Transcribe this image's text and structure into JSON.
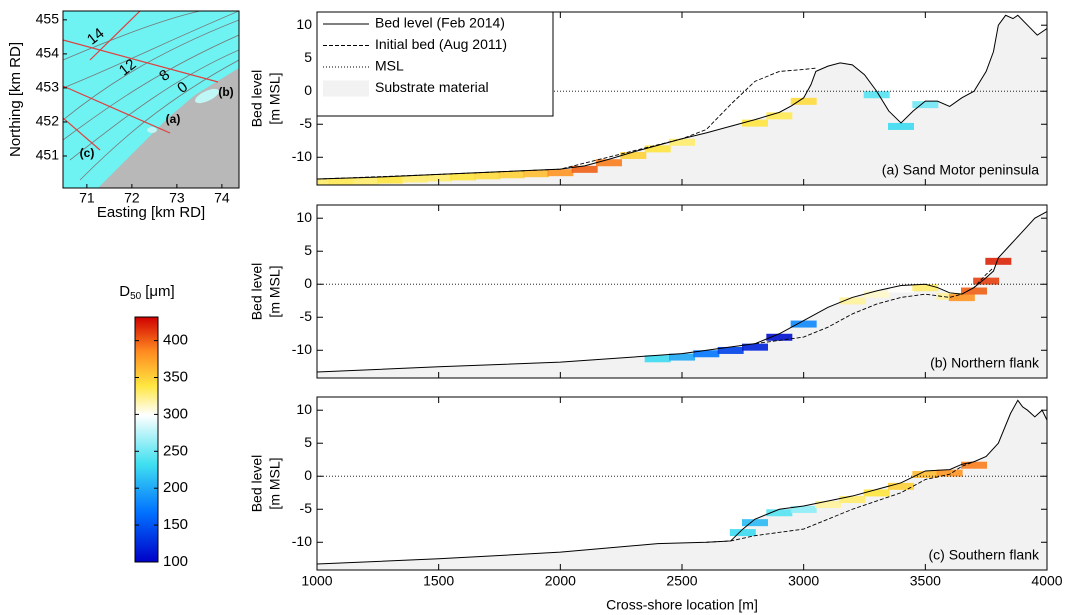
{
  "chart_data": [
    {
      "type": "map",
      "xlabel": "Easting [km RD]",
      "ylabel": "Northing [km RD]",
      "xlim": [
        70.47,
        74.38
      ],
      "ylim": [
        450.06,
        455.26
      ],
      "xticks": [
        71,
        72,
        73,
        74
      ],
      "yticks": [
        451,
        452,
        453,
        454,
        455
      ],
      "contour_labels": [
        "14",
        "12",
        "8",
        "0"
      ],
      "transect_labels": [
        "(a)",
        "(b)",
        "(c)"
      ],
      "water_color": "#6ff2f2",
      "land_color": "#b8b8b8",
      "transect_color": "#e04040"
    },
    {
      "type": "colorbar",
      "label": "D",
      "label_sub": "50",
      "label_unit": "[μm]",
      "clim": [
        100,
        432
      ],
      "ticks": [
        100,
        150,
        200,
        250,
        300,
        350,
        400
      ]
    },
    {
      "type": "profile",
      "ylabel": [
        "Bed level",
        "[m MSL]"
      ],
      "panel_label": "(a) Sand Motor peninsula",
      "xlim": [
        1000,
        4000
      ],
      "ylim": [
        -14.2,
        12
      ],
      "xticks": [
        1000,
        1500,
        2000,
        2500,
        3000,
        3500,
        4000
      ],
      "yticks": [
        -10,
        -5,
        0,
        5,
        10
      ],
      "xtick_labels": false,
      "legend": "upper left",
      "substrate": {
        "name": "Substrate material",
        "color": "#f2f2f2"
      },
      "series": [
        {
          "name": "Bed level (Feb 2014)",
          "style": "solid",
          "color": "#000000",
          "x": [
            1000,
            1250,
            1500,
            1750,
            2000,
            2100,
            2200,
            2300,
            2400,
            2500,
            2600,
            2700,
            2800,
            2900,
            2950,
            3000,
            3030,
            3050,
            3100,
            3150,
            3200,
            3250,
            3300,
            3350,
            3400,
            3450,
            3500,
            3550,
            3600,
            3650,
            3700,
            3750,
            3780,
            3800,
            3830,
            3860,
            3880,
            3920,
            3960,
            4000
          ],
          "values": [
            -13.3,
            -13,
            -12.6,
            -12.2,
            -11.8,
            -11.3,
            -10.3,
            -9.2,
            -8.2,
            -7.2,
            -6.3,
            -5.3,
            -4.3,
            -3.2,
            -2.2,
            -1,
            1,
            3,
            3.8,
            4.3,
            4,
            2.5,
            0,
            -3,
            -4.8,
            -3,
            -1.5,
            -1.5,
            -2.3,
            -1,
            0,
            3,
            6,
            10,
            11.5,
            11,
            11.5,
            10,
            8.5,
            9.5
          ]
        },
        {
          "name": "Initial bed (Aug 2011)",
          "style": "dashed",
          "color": "#000000",
          "x": [
            1000,
            1500,
            2000,
            2500,
            2600,
            2700,
            2800,
            2900,
            3000,
            3050
          ],
          "values": [
            -13.3,
            -12.6,
            -11.8,
            -7.2,
            -5.8,
            -2,
            1.5,
            3,
            3.3,
            3.5
          ]
        },
        {
          "name": "MSL",
          "style": "dotted",
          "color": "#000000",
          "x": [
            1000,
            4000
          ],
          "values": [
            0,
            0
          ]
        }
      ],
      "sediment": {
        "x": [
          1000,
          1100,
          1200,
          1300,
          1400,
          1500,
          1600,
          1700,
          1800,
          1900,
          2000,
          2100,
          2200,
          2300,
          2400,
          2500,
          2800,
          2900,
          3000,
          3300,
          3400,
          3500
        ],
        "d50": [
          330,
          335,
          330,
          340,
          330,
          330,
          340,
          345,
          350,
          360,
          380,
          400,
          390,
          350,
          340,
          330,
          340,
          335,
          345,
          240,
          230,
          250
        ]
      }
    },
    {
      "type": "profile",
      "ylabel": [
        "Bed level",
        "[m MSL]"
      ],
      "panel_label": "(b) Northern flank",
      "xlim": [
        1000,
        4000
      ],
      "ylim": [
        -14.2,
        12
      ],
      "xticks": [
        1000,
        1500,
        2000,
        2500,
        3000,
        3500,
        4000
      ],
      "yticks": [
        -10,
        -5,
        0,
        5,
        10
      ],
      "xtick_labels": false,
      "substrate_color": "#f2f2f2",
      "series": [
        {
          "style": "solid",
          "color": "#000000",
          "x": [
            1000,
            1500,
            2000,
            2500,
            2800,
            2900,
            3000,
            3100,
            3200,
            3300,
            3400,
            3500,
            3550,
            3600,
            3650,
            3700,
            3750,
            3780,
            3800,
            3850,
            3900,
            3950,
            4000
          ],
          "values": [
            -13.3,
            -12.5,
            -11.8,
            -10.5,
            -9,
            -7.5,
            -5.5,
            -3.5,
            -2,
            -1,
            -0.2,
            0,
            -0.5,
            -1.3,
            -1.5,
            -0.5,
            1,
            2,
            4,
            6,
            8,
            10,
            11
          ]
        },
        {
          "style": "dashed",
          "color": "#000000",
          "x": [
            2800,
            3000,
            3100,
            3200,
            3300,
            3400,
            3500,
            3600,
            3650,
            3700,
            3750,
            3780
          ],
          "values": [
            -9,
            -8,
            -6.5,
            -4.5,
            -3,
            -2,
            -1.5,
            -2,
            -1.5,
            -0.5,
            1.5,
            2.5
          ]
        },
        {
          "style": "dotted",
          "color": "#000000",
          "x": [
            1000,
            4000
          ],
          "values": [
            0,
            0
          ]
        }
      ],
      "sediment": {
        "x": [
          2400,
          2500,
          2600,
          2700,
          2800,
          2900,
          3000,
          3200,
          3300,
          3400,
          3500,
          3600,
          3650,
          3700,
          3750,
          3800
        ],
        "d50": [
          230,
          200,
          170,
          140,
          120,
          110,
          180,
          320,
          310,
          300,
          330,
          320,
          380,
          400,
          410,
          420
        ]
      }
    },
    {
      "type": "profile",
      "ylabel": [
        "Bed level",
        "[m MSL]"
      ],
      "panel_label": "(c) Southern flank",
      "xlabel": "Cross-shore location [m]",
      "xlim": [
        1000,
        4000
      ],
      "ylim": [
        -14.2,
        12
      ],
      "xticks": [
        1000,
        1500,
        2000,
        2500,
        3000,
        3500,
        4000
      ],
      "yticks": [
        -10,
        -5,
        0,
        5,
        10
      ],
      "xtick_labels": true,
      "substrate_color": "#f2f2f2",
      "series": [
        {
          "style": "solid",
          "color": "#000000",
          "x": [
            1000,
            1500,
            2000,
            2400,
            2600,
            2700,
            2750,
            2800,
            2900,
            3000,
            3200,
            3400,
            3500,
            3600,
            3650,
            3700,
            3750,
            3800,
            3850,
            3880,
            3900,
            3920,
            3950,
            3980,
            4000
          ],
          "values": [
            -13.3,
            -12.5,
            -11.5,
            -10.2,
            -10,
            -9.8,
            -8,
            -6.5,
            -5,
            -4.5,
            -3,
            -1,
            0.8,
            1,
            1.8,
            2.2,
            3,
            5,
            9.5,
            11.5,
            10.5,
            10,
            9,
            10,
            8.5
          ]
        },
        {
          "style": "dashed",
          "color": "#000000",
          "x": [
            2600,
            2700,
            2800,
            3000,
            3200,
            3400,
            3500,
            3600,
            3650,
            3700
          ],
          "values": [
            -10,
            -9.8,
            -9,
            -8,
            -5,
            -2.5,
            -0.5,
            0.3,
            1.5,
            2.2
          ]
        },
        {
          "style": "dotted",
          "color": "#000000",
          "x": [
            1000,
            4000
          ],
          "values": [
            0,
            0
          ]
        }
      ],
      "sediment": {
        "x": [
          2750,
          2800,
          2900,
          3000,
          3100,
          3200,
          3300,
          3400,
          3500,
          3600,
          3700
        ],
        "d50": [
          230,
          210,
          240,
          260,
          320,
          330,
          340,
          350,
          360,
          380,
          390
        ]
      }
    }
  ]
}
